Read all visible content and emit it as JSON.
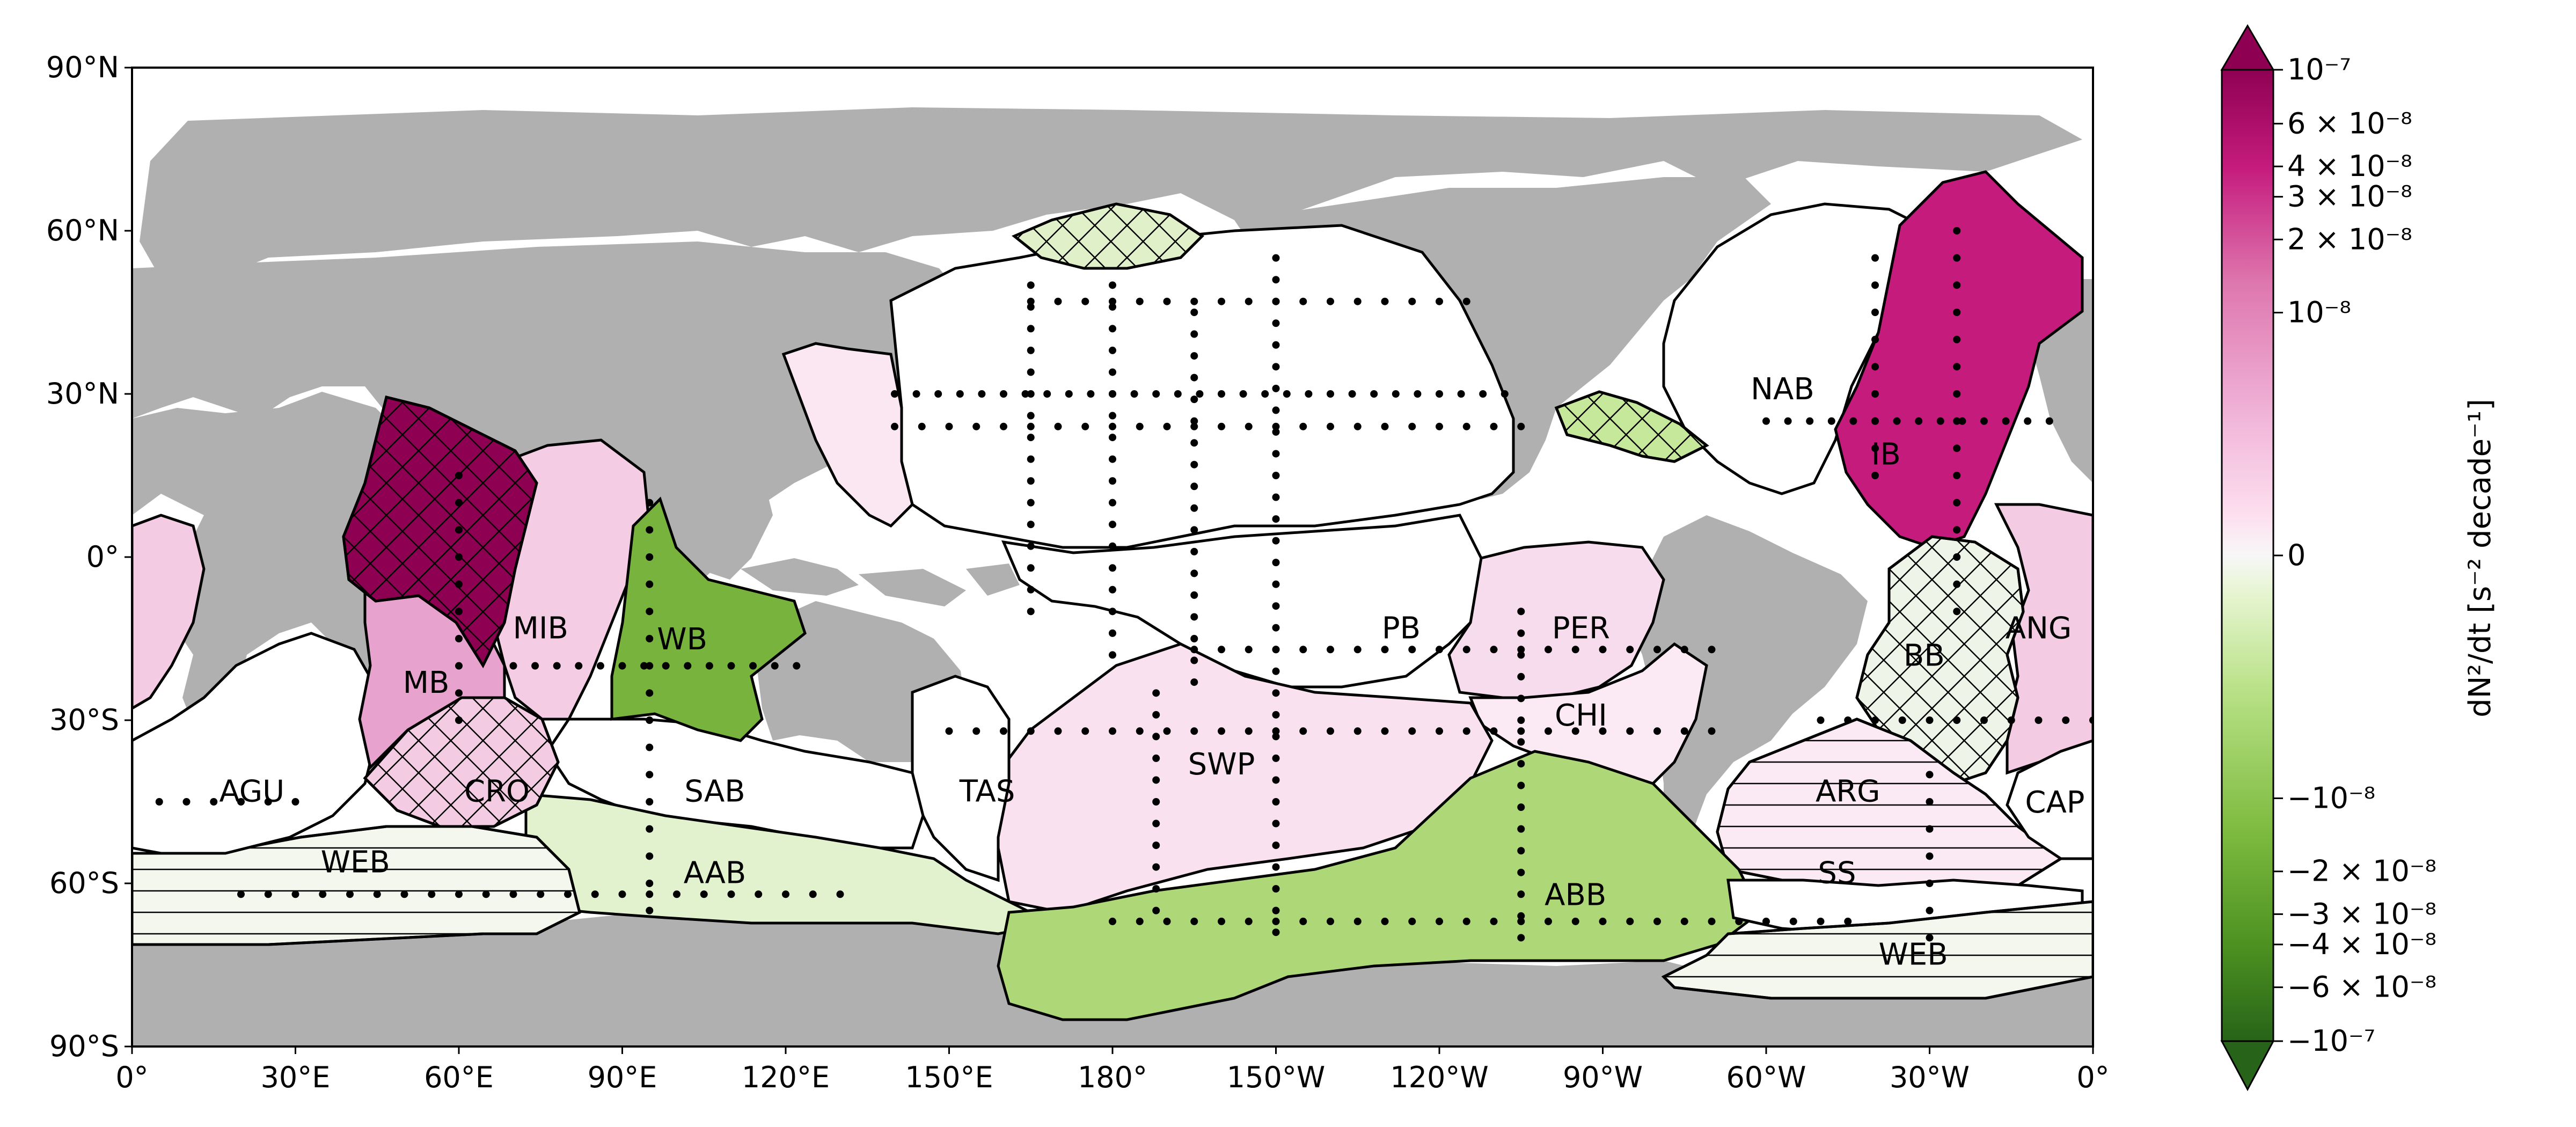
{
  "map": {
    "lat_ticks": [
      "90°N",
      "60°N",
      "30°N",
      "0°",
      "30°S",
      "60°S",
      "90°S"
    ],
    "lon_ticks": [
      "0°",
      "30°E",
      "60°E",
      "90°E",
      "120°E",
      "150°E",
      "180°",
      "150°W",
      "120°W",
      "90°W",
      "60°W",
      "30°W",
      "0°"
    ],
    "lon_range": [
      0,
      360
    ],
    "lat_range": [
      -90,
      90
    ],
    "land_color": "#b0b0b0",
    "ocean_color": "#ffffff"
  },
  "regions": [
    {
      "code": "NAB",
      "lon": 303,
      "lat": 31,
      "color": "#ffffff",
      "hatch": "none"
    },
    {
      "code": "IB",
      "lon": 322,
      "lat": 19,
      "color": "#c51b7d",
      "hatch": "none"
    },
    {
      "code": "MIB",
      "lon": 75,
      "lat": -13,
      "color": "#f4cde5",
      "hatch": "none"
    },
    {
      "code": "WB",
      "lon": 101,
      "lat": -15,
      "color": "#78b33e",
      "hatch": "none"
    },
    {
      "code": "MB",
      "lon": 54,
      "lat": -23,
      "color": "#e7a3cd",
      "hatch": "none"
    },
    {
      "code": "PB",
      "lon": 233,
      "lat": -13,
      "color": "#ffffff",
      "hatch": "none"
    },
    {
      "code": "PER",
      "lon": 266,
      "lat": -13,
      "color": "#f6dcec",
      "hatch": "none"
    },
    {
      "code": "ANG",
      "lon": 350,
      "lat": -13,
      "color": "#f3cbe3",
      "hatch": "none"
    },
    {
      "code": "BB",
      "lon": 329,
      "lat": -18,
      "color": "#eef5e8",
      "hatch": "cross"
    },
    {
      "code": "CHI",
      "lon": 266,
      "lat": -29,
      "color": "#fbeaf3",
      "hatch": "none"
    },
    {
      "code": "SWP",
      "lon": 200,
      "lat": -38,
      "color": "#f9e1ef",
      "hatch": "none"
    },
    {
      "code": "AGU",
      "lon": 22,
      "lat": -43,
      "color": "#ffffff",
      "hatch": "none"
    },
    {
      "code": "CRO",
      "lon": 67,
      "lat": -43,
      "color": "#f3cbe3",
      "hatch": "cross"
    },
    {
      "code": "SAB",
      "lon": 107,
      "lat": -43,
      "color": "#ffffff",
      "hatch": "none"
    },
    {
      "code": "TAS",
      "lon": 157,
      "lat": -43,
      "color": "#ffffff",
      "hatch": "none"
    },
    {
      "code": "ARG",
      "lon": 315,
      "lat": -43,
      "color": "#fbeaf3",
      "hatch": "horizontal"
    },
    {
      "code": "CAP",
      "lon": 353,
      "lat": -45,
      "color": "#ffffff",
      "hatch": "none"
    },
    {
      "code": "WEB",
      "lon": 41,
      "lat": -56,
      "color": "#f3f7ee",
      "hatch": "horizontal"
    },
    {
      "code": "AAB",
      "lon": 107,
      "lat": -58,
      "color": "#e2f2cf",
      "hatch": "none"
    },
    {
      "code": "SS",
      "lon": 313,
      "lat": -58,
      "color": "#ffffff",
      "hatch": "none"
    },
    {
      "code": "ABB",
      "lon": 265,
      "lat": -62,
      "color": "#aed878",
      "hatch": "none"
    },
    {
      "code": "WEB",
      "lon": 327,
      "lat": -73,
      "color": "#f3f7ee",
      "hatch": "horizontal"
    }
  ],
  "colorbar": {
    "label": "dN²/dt [s⁻² decade⁻¹]",
    "scale": "symlog",
    "range": [
      -1e-07,
      1e-07
    ],
    "ticks": [
      {
        "value": 1e-07,
        "label": "10⁻⁷"
      },
      {
        "value": 6e-08,
        "label": "6 × 10⁻⁸"
      },
      {
        "value": 4e-08,
        "label": "4 × 10⁻⁸"
      },
      {
        "value": 3e-08,
        "label": "3 × 10⁻⁸"
      },
      {
        "value": 2e-08,
        "label": "2 × 10⁻⁸"
      },
      {
        "value": 1e-08,
        "label": "10⁻⁸"
      },
      {
        "value": 0,
        "label": "0"
      },
      {
        "value": -1e-08,
        "label": "−10⁻⁸"
      },
      {
        "value": -2e-08,
        "label": "−2 × 10⁻⁸"
      },
      {
        "value": -3e-08,
        "label": "−3 × 10⁻⁸"
      },
      {
        "value": -4e-08,
        "label": "−4 × 10⁻⁸"
      },
      {
        "value": -6e-08,
        "label": "−6 × 10⁻⁸"
      },
      {
        "value": -1e-07,
        "label": "−10⁻⁷"
      }
    ],
    "colors_top_to_bottom": [
      "#8e0152",
      "#c51b7d",
      "#de77ae",
      "#f1b6da",
      "#fde0ef",
      "#f7f7f7",
      "#e6f5d0",
      "#b8e186",
      "#7fbc41",
      "#4d9221",
      "#276419"
    ]
  }
}
